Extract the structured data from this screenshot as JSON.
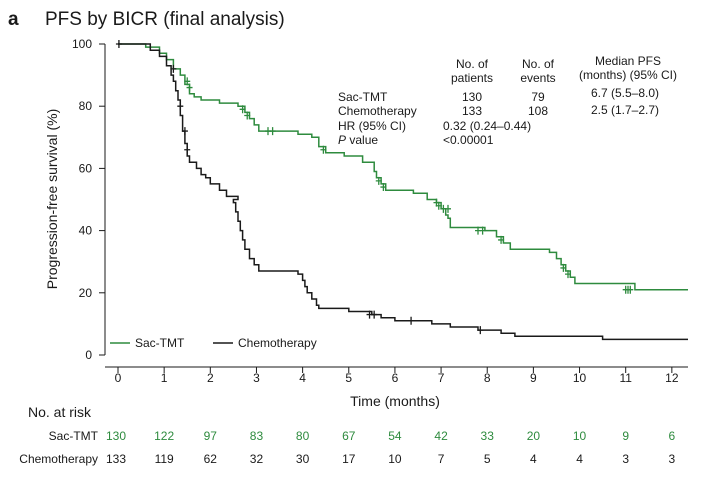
{
  "chart_data": {
    "type": "line",
    "panel_letter": "a",
    "title": "PFS by BICR (final analysis)",
    "xlabel": "Time (months)",
    "ylabel": "Progression-free survival (%)",
    "xlim": [
      0,
      12.35
    ],
    "ylim": [
      0,
      100
    ],
    "x_ticks": [
      0,
      1,
      2,
      3,
      4,
      5,
      6,
      7,
      8,
      9,
      10,
      11,
      12
    ],
    "y_ticks": [
      0,
      20,
      40,
      60,
      80,
      100
    ],
    "legend": [
      "Sac-TMT",
      "Chemotherapy"
    ],
    "colors": {
      "sac_tmt": "#2e8b3e",
      "chemotherapy": "#1a1a1a",
      "axis": "#1a1a1a"
    },
    "series": [
      {
        "name": "Sac-TMT",
        "color": "#2e8b3e",
        "steps": [
          [
            0,
            100
          ],
          [
            0.6,
            99
          ],
          [
            0.9,
            97
          ],
          [
            1.05,
            95
          ],
          [
            1.2,
            92
          ],
          [
            1.35,
            90
          ],
          [
            1.45,
            87
          ],
          [
            1.55,
            84
          ],
          [
            1.65,
            83
          ],
          [
            1.8,
            82
          ],
          [
            2.2,
            81
          ],
          [
            2.6,
            80
          ],
          [
            2.75,
            78
          ],
          [
            2.85,
            76
          ],
          [
            2.95,
            74
          ],
          [
            3.05,
            72
          ],
          [
            3.9,
            71
          ],
          [
            4.2,
            70
          ],
          [
            4.35,
            67
          ],
          [
            4.5,
            65
          ],
          [
            4.9,
            64
          ],
          [
            5.3,
            62
          ],
          [
            5.55,
            59
          ],
          [
            5.6,
            57
          ],
          [
            5.7,
            55
          ],
          [
            5.8,
            53
          ],
          [
            6.4,
            52
          ],
          [
            6.7,
            50
          ],
          [
            6.9,
            49
          ],
          [
            7.0,
            47
          ],
          [
            7.1,
            45
          ],
          [
            7.15,
            44
          ],
          [
            7.2,
            41
          ],
          [
            7.95,
            40
          ],
          [
            8.2,
            38
          ],
          [
            8.35,
            36
          ],
          [
            8.5,
            34
          ],
          [
            9.35,
            33
          ],
          [
            9.5,
            31
          ],
          [
            9.6,
            29
          ],
          [
            9.7,
            27
          ],
          [
            9.8,
            25
          ],
          [
            9.9,
            23
          ],
          [
            11.2,
            21
          ],
          [
            12.35,
            21
          ]
        ],
        "censors": [
          [
            1.5,
            88
          ],
          [
            1.55,
            86
          ],
          [
            2.7,
            79
          ],
          [
            2.8,
            77
          ],
          [
            3.25,
            72
          ],
          [
            3.35,
            72
          ],
          [
            4.45,
            66
          ],
          [
            5.65,
            56
          ],
          [
            5.75,
            54
          ],
          [
            6.9,
            49
          ],
          [
            6.95,
            48
          ],
          [
            7.05,
            47
          ],
          [
            7.15,
            47
          ],
          [
            7.8,
            40
          ],
          [
            7.9,
            40
          ],
          [
            8.3,
            37
          ],
          [
            9.65,
            28
          ],
          [
            9.75,
            26
          ],
          [
            11.0,
            21
          ],
          [
            11.05,
            21
          ],
          [
            11.1,
            21
          ]
        ],
        "at_risk": [
          130,
          122,
          97,
          83,
          80,
          67,
          54,
          42,
          33,
          20,
          10,
          9,
          6
        ]
      },
      {
        "name": "Chemotherapy",
        "color": "#1a1a1a",
        "steps": [
          [
            0,
            100
          ],
          [
            0.7,
            98
          ],
          [
            0.9,
            96
          ],
          [
            1.05,
            93
          ],
          [
            1.15,
            90
          ],
          [
            1.2,
            88
          ],
          [
            1.25,
            85
          ],
          [
            1.3,
            82
          ],
          [
            1.35,
            77
          ],
          [
            1.4,
            72
          ],
          [
            1.45,
            68
          ],
          [
            1.5,
            64
          ],
          [
            1.55,
            62
          ],
          [
            1.7,
            60
          ],
          [
            1.8,
            58
          ],
          [
            1.9,
            57
          ],
          [
            2.0,
            55
          ],
          [
            2.2,
            53
          ],
          [
            2.35,
            51
          ],
          [
            2.6,
            50
          ],
          [
            2.5,
            49
          ],
          [
            2.55,
            46
          ],
          [
            2.6,
            43
          ],
          [
            2.65,
            40
          ],
          [
            2.7,
            37
          ],
          [
            2.75,
            34
          ],
          [
            2.85,
            31
          ],
          [
            2.95,
            29
          ],
          [
            3.05,
            27
          ],
          [
            3.9,
            26
          ],
          [
            4.0,
            24
          ],
          [
            4.05,
            22
          ],
          [
            4.1,
            20
          ],
          [
            4.2,
            18
          ],
          [
            4.3,
            16
          ],
          [
            4.35,
            15
          ],
          [
            5.0,
            14
          ],
          [
            5.5,
            13
          ],
          [
            5.7,
            12
          ],
          [
            6.0,
            11
          ],
          [
            6.8,
            10
          ],
          [
            7.2,
            9
          ],
          [
            7.8,
            8
          ],
          [
            8.3,
            7
          ],
          [
            8.6,
            6
          ],
          [
            10.5,
            5
          ],
          [
            12.35,
            5
          ]
        ],
        "censors": [
          [
            0.02,
            100
          ],
          [
            1.2,
            92
          ],
          [
            1.35,
            80
          ],
          [
            1.45,
            72
          ],
          [
            1.5,
            66
          ],
          [
            5.45,
            13
          ],
          [
            5.55,
            13
          ],
          [
            6.35,
            11
          ],
          [
            7.85,
            8
          ]
        ],
        "at_risk": [
          133,
          119,
          62,
          32,
          30,
          17,
          10,
          7,
          5,
          4,
          4,
          3,
          3
        ]
      }
    ],
    "stats_table": {
      "headers": [
        "No. of\npatients",
        "No. of\nevents",
        "Median PFS\n(months) (95% CI)"
      ],
      "rows": [
        {
          "label": "Sac-TMT",
          "patients": "130",
          "events": "79",
          "median": "6.7 (5.5–8.0)"
        },
        {
          "label": "Chemotherapy",
          "patients": "133",
          "events": "108",
          "median": "2.5 (1.7–2.7)"
        }
      ],
      "hr_label": "HR (95% CI)",
      "hr_value": "0.32 (0.24–0.44)",
      "p_label_italic": "P",
      "p_label_rest": " value",
      "p_value": "<0.00001"
    },
    "risk_table": {
      "title": "No. at risk",
      "rows": [
        {
          "label": "Sac-TMT",
          "color": "#2e8b3e"
        },
        {
          "label": "Chemotherapy",
          "color": "#1a1a1a"
        }
      ]
    }
  }
}
